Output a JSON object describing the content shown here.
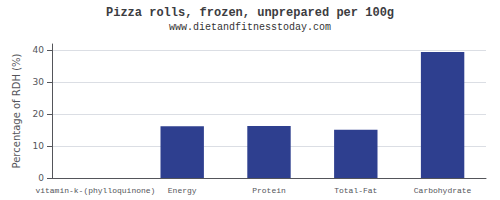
{
  "chart_data": {
    "type": "bar",
    "title": "Pizza rolls, frozen, unprepared per 100g",
    "subtitle": "www.dietandfitnesstoday.com",
    "categories": [
      "vitamin-k-(phylloquinone)",
      "Energy",
      "Protein",
      "Total-Fat",
      "Carbohydrate"
    ],
    "values": [
      0,
      16.2,
      16.3,
      15.1,
      39.5
    ],
    "color": "#2e3f8f",
    "ylabel": "Percentage of RDH (%)",
    "ylim": [
      0,
      42
    ],
    "yticks": [
      0,
      10,
      20,
      30,
      40
    ],
    "grid": true
  }
}
